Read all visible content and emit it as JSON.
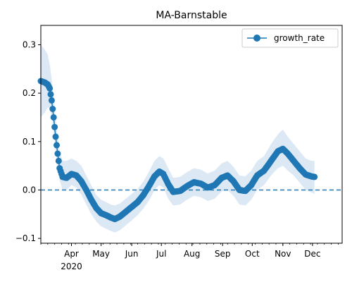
{
  "chart_data": {
    "type": "line",
    "title": "MA-Barnstable",
    "xlabel": "",
    "ylabel": "",
    "x_range": [
      "2020-03-01",
      "2020-12-31"
    ],
    "ylim": [
      -0.11,
      0.34
    ],
    "x_ticks": [
      {
        "date": "2020-04-01",
        "label": "Apr"
      },
      {
        "date": "2020-05-01",
        "label": "May"
      },
      {
        "date": "2020-06-01",
        "label": "Jun"
      },
      {
        "date": "2020-07-01",
        "label": "Jul"
      },
      {
        "date": "2020-08-01",
        "label": "Aug"
      },
      {
        "date": "2020-09-01",
        "label": "Sep"
      },
      {
        "date": "2020-10-01",
        "label": "Oct"
      },
      {
        "date": "2020-11-01",
        "label": "Nov"
      },
      {
        "date": "2020-12-01",
        "label": "Dec"
      }
    ],
    "x_year_label": "2020",
    "y_ticks": [
      -0.1,
      0.0,
      0.1,
      0.2,
      0.3
    ],
    "y_tick_labels": [
      "−0.1",
      "0.0",
      "0.1",
      "0.2",
      "0.3"
    ],
    "reference_line": {
      "y": 0.0,
      "style": "dashed",
      "color": "#1f77b4"
    },
    "legend": {
      "placement": "top-right",
      "entries": [
        "growth_rate"
      ]
    },
    "grid": false,
    "series": [
      {
        "name": "growth_rate",
        "color": "#1f77b4",
        "marker": "circle",
        "band_color": "#dce9f5",
        "points": [
          {
            "x": "2020-03-01",
            "y": 0.225,
            "lo": 0.15,
            "hi": 0.3
          },
          {
            "x": "2020-03-05",
            "y": 0.222,
            "lo": 0.16,
            "hi": 0.29
          },
          {
            "x": "2020-03-08",
            "y": 0.218,
            "lo": 0.17,
            "hi": 0.28
          },
          {
            "x": "2020-03-10",
            "y": 0.21,
            "lo": 0.17,
            "hi": 0.26
          },
          {
            "x": "2020-03-12",
            "y": 0.185,
            "lo": 0.15,
            "hi": 0.23
          },
          {
            "x": "2020-03-14",
            "y": 0.15,
            "lo": 0.12,
            "hi": 0.19
          },
          {
            "x": "2020-03-16",
            "y": 0.11,
            "lo": 0.08,
            "hi": 0.15
          },
          {
            "x": "2020-03-18",
            "y": 0.075,
            "lo": 0.05,
            "hi": 0.11
          },
          {
            "x": "2020-03-20",
            "y": 0.045,
            "lo": 0.02,
            "hi": 0.08
          },
          {
            "x": "2020-03-23",
            "y": 0.027,
            "lo": 0.0,
            "hi": 0.06
          },
          {
            "x": "2020-03-27",
            "y": 0.025,
            "lo": 0.0,
            "hi": 0.06
          },
          {
            "x": "2020-04-01",
            "y": 0.033,
            "lo": 0.01,
            "hi": 0.065
          },
          {
            "x": "2020-04-06",
            "y": 0.03,
            "lo": 0.005,
            "hi": 0.06
          },
          {
            "x": "2020-04-11",
            "y": 0.018,
            "lo": -0.01,
            "hi": 0.05
          },
          {
            "x": "2020-04-16",
            "y": 0.0,
            "lo": -0.03,
            "hi": 0.03
          },
          {
            "x": "2020-04-21",
            "y": -0.02,
            "lo": -0.05,
            "hi": 0.01
          },
          {
            "x": "2020-04-26",
            "y": -0.037,
            "lo": -0.065,
            "hi": -0.01
          },
          {
            "x": "2020-05-01",
            "y": -0.048,
            "lo": -0.075,
            "hi": -0.02
          },
          {
            "x": "2020-05-06",
            "y": -0.052,
            "lo": -0.08,
            "hi": -0.025
          },
          {
            "x": "2020-05-11",
            "y": -0.057,
            "lo": -0.085,
            "hi": -0.03
          },
          {
            "x": "2020-05-15",
            "y": -0.06,
            "lo": -0.088,
            "hi": -0.032
          },
          {
            "x": "2020-05-20",
            "y": -0.055,
            "lo": -0.083,
            "hi": -0.028
          },
          {
            "x": "2020-05-26",
            "y": -0.045,
            "lo": -0.073,
            "hi": -0.018
          },
          {
            "x": "2020-06-01",
            "y": -0.035,
            "lo": -0.063,
            "hi": -0.008
          },
          {
            "x": "2020-06-07",
            "y": -0.025,
            "lo": -0.052,
            "hi": 0.002
          },
          {
            "x": "2020-06-13",
            "y": -0.01,
            "lo": -0.038,
            "hi": 0.018
          },
          {
            "x": "2020-06-19",
            "y": 0.01,
            "lo": -0.02,
            "hi": 0.04
          },
          {
            "x": "2020-06-24",
            "y": 0.028,
            "lo": 0.0,
            "hi": 0.06
          },
          {
            "x": "2020-06-29",
            "y": 0.038,
            "lo": 0.01,
            "hi": 0.07
          },
          {
            "x": "2020-07-03",
            "y": 0.033,
            "lo": 0.005,
            "hi": 0.065
          },
          {
            "x": "2020-07-08",
            "y": 0.012,
            "lo": -0.018,
            "hi": 0.045
          },
          {
            "x": "2020-07-13",
            "y": -0.004,
            "lo": -0.032,
            "hi": 0.025
          },
          {
            "x": "2020-07-20",
            "y": -0.002,
            "lo": -0.03,
            "hi": 0.027
          },
          {
            "x": "2020-07-27",
            "y": 0.008,
            "lo": -0.02,
            "hi": 0.037
          },
          {
            "x": "2020-08-03",
            "y": 0.016,
            "lo": -0.012,
            "hi": 0.045
          },
          {
            "x": "2020-08-10",
            "y": 0.013,
            "lo": -0.015,
            "hi": 0.042
          },
          {
            "x": "2020-08-17",
            "y": 0.005,
            "lo": -0.023,
            "hi": 0.034
          },
          {
            "x": "2020-08-24",
            "y": 0.01,
            "lo": -0.018,
            "hi": 0.04
          },
          {
            "x": "2020-08-31",
            "y": 0.025,
            "lo": -0.003,
            "hi": 0.055
          },
          {
            "x": "2020-09-06",
            "y": 0.03,
            "lo": 0.0,
            "hi": 0.06
          },
          {
            "x": "2020-09-12",
            "y": 0.018,
            "lo": -0.012,
            "hi": 0.048
          },
          {
            "x": "2020-09-18",
            "y": 0.0,
            "lo": -0.03,
            "hi": 0.03
          },
          {
            "x": "2020-09-24",
            "y": -0.002,
            "lo": -0.032,
            "hi": 0.028
          },
          {
            "x": "2020-09-30",
            "y": 0.01,
            "lo": -0.02,
            "hi": 0.04
          },
          {
            "x": "2020-10-06",
            "y": 0.03,
            "lo": 0.0,
            "hi": 0.06
          },
          {
            "x": "2020-10-13",
            "y": 0.04,
            "lo": 0.01,
            "hi": 0.07
          },
          {
            "x": "2020-10-20",
            "y": 0.06,
            "lo": 0.03,
            "hi": 0.095
          },
          {
            "x": "2020-10-27",
            "y": 0.08,
            "lo": 0.045,
            "hi": 0.115
          },
          {
            "x": "2020-11-01",
            "y": 0.085,
            "lo": 0.05,
            "hi": 0.125
          },
          {
            "x": "2020-11-06",
            "y": 0.075,
            "lo": 0.04,
            "hi": 0.11
          },
          {
            "x": "2020-11-12",
            "y": 0.06,
            "lo": 0.03,
            "hi": 0.095
          },
          {
            "x": "2020-11-18",
            "y": 0.045,
            "lo": 0.015,
            "hi": 0.08
          },
          {
            "x": "2020-11-24",
            "y": 0.032,
            "lo": 0.0,
            "hi": 0.065
          },
          {
            "x": "2020-11-30",
            "y": 0.028,
            "lo": -0.005,
            "hi": 0.06
          },
          {
            "x": "2020-12-03",
            "y": 0.027,
            "lo": -0.008,
            "hi": 0.06
          }
        ]
      }
    ]
  }
}
